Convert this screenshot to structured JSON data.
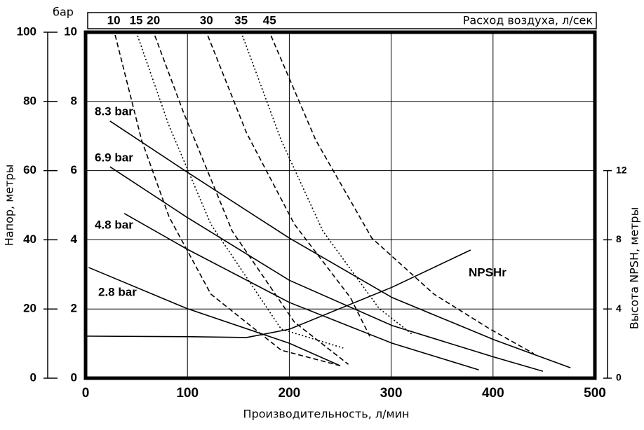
{
  "chart_data": {
    "type": "line",
    "x_label": "Производительность, л/мин",
    "y_label": "Напор, метры",
    "ybar_label": "бар",
    "y2_label": "Высота NPSH, метры",
    "top_label": "Расход воздуха, л/сек",
    "xlim": [
      0,
      500
    ],
    "xticks": [
      0,
      100,
      200,
      300,
      400,
      500
    ],
    "ylim": [
      0,
      100
    ],
    "yticks": [
      0,
      20,
      40,
      60,
      80,
      100
    ],
    "ybar_lim": [
      0,
      10
    ],
    "ybar_ticks": [
      0,
      2,
      4,
      6,
      8,
      10
    ],
    "y2lim": [
      0,
      20
    ],
    "y2ticks": [
      0,
      4,
      8,
      12
    ],
    "grid": true,
    "series": [
      {
        "name": "8.3 bar",
        "color": "#000000",
        "style": "solid",
        "x": [
          24,
          99,
          200,
          301,
          401,
          476
        ],
        "values": [
          74.3,
          59.7,
          40.5,
          23.3,
          11.1,
          3.0
        ]
      },
      {
        "name": "6.9 bar",
        "color": "#000000",
        "style": "solid",
        "x": [
          24,
          99,
          200,
          301,
          401,
          449
        ],
        "values": [
          61.1,
          46.6,
          28.3,
          15.2,
          6.1,
          2.0
        ]
      },
      {
        "name": "4.8 bar",
        "color": "#000000",
        "style": "solid",
        "x": [
          38,
          99,
          200,
          301,
          386
        ],
        "values": [
          47.6,
          37.4,
          21.9,
          10.1,
          2.4
        ]
      },
      {
        "name": "2.8 bar",
        "color": "#000000",
        "style": "solid",
        "x": [
          3,
          99,
          200,
          250
        ],
        "values": [
          32,
          20.2,
          10.1,
          3.6
        ]
      },
      {
        "name": "NPSHr",
        "color": "#000000",
        "style": "solid",
        "axis": "y2",
        "x": [
          0,
          99,
          158,
          200,
          301,
          378
        ],
        "values": [
          2.43,
          2.4,
          2.35,
          2.83,
          5.26,
          7.41
        ]
      },
      {
        "name": "10",
        "color": "#000000",
        "style": "dashed",
        "group": "air",
        "x": [
          29,
          55,
          82,
          123,
          192,
          250
        ],
        "values": [
          99.2,
          68.8,
          46.6,
          24.3,
          8.1,
          3.6
        ]
      },
      {
        "name": "15",
        "color": "#000000",
        "style": "dotted",
        "group": "air",
        "x": [
          51,
          82,
          123,
          192,
          253
        ],
        "values": [
          99,
          72.9,
          44.5,
          14.2,
          8.7
        ]
      },
      {
        "name": "20",
        "color": "#000000",
        "style": "dashed",
        "group": "air",
        "x": [
          68,
          96,
          144,
          205,
          258
        ],
        "values": [
          99,
          76.9,
          42.5,
          16.2,
          4.0
        ]
      },
      {
        "name": "30",
        "color": "#000000",
        "style": "dashed",
        "group": "air",
        "x": [
          120,
          158,
          205,
          260,
          279
        ],
        "values": [
          99,
          70.9,
          44.5,
          23.3,
          12.1
        ]
      },
      {
        "name": "35",
        "color": "#000000",
        "style": "dotted",
        "group": "air",
        "x": [
          154,
          192,
          233,
          288,
          321
        ],
        "values": [
          99,
          68.8,
          42.5,
          20.2,
          12.6
        ]
      },
      {
        "name": "45",
        "color": "#000000",
        "style": "dashed",
        "group": "air",
        "x": [
          182,
          226,
          281,
          342,
          397,
          440
        ],
        "values": [
          99,
          68.8,
          40.5,
          24.3,
          14.2,
          7.1
        ]
      }
    ]
  }
}
